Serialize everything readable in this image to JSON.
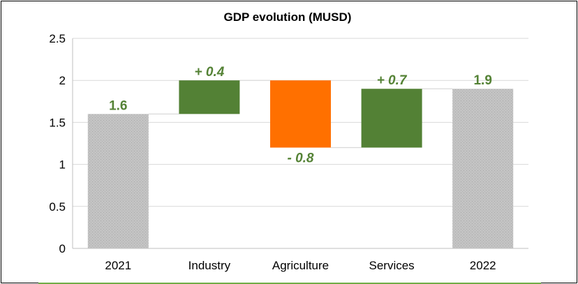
{
  "chart_data": {
    "type": "bar",
    "subtype": "waterfall",
    "title": "GDP evolution (MUSD)",
    "xlabel": "",
    "ylabel": "",
    "ylim": [
      0,
      2.5
    ],
    "yticks": [
      "0",
      "0.5",
      "1",
      "1.5",
      "2",
      "2.5"
    ],
    "grid": true,
    "categories": [
      "2021",
      "Industry",
      "Agriculture",
      "Services",
      "2022"
    ],
    "bars": [
      {
        "category": "2021",
        "kind": "total",
        "start": 0,
        "end": 1.6,
        "label": "1.6"
      },
      {
        "category": "Industry",
        "kind": "increase",
        "start": 1.6,
        "end": 2.0,
        "label": "+ 0.4"
      },
      {
        "category": "Agriculture",
        "kind": "decrease",
        "start": 2.0,
        "end": 1.2,
        "label": "- 0.8"
      },
      {
        "category": "Services",
        "kind": "increase",
        "start": 1.2,
        "end": 1.9,
        "label": "+ 0.7"
      },
      {
        "category": "2022",
        "kind": "total",
        "start": 0,
        "end": 1.9,
        "label": "1.9"
      }
    ],
    "colors": {
      "total": "#c0c0c0",
      "increase": "#538135",
      "decrease": "#ff7000",
      "label": "#548235",
      "grid": "#d9d9d9",
      "connector": "#d9d9d9",
      "accent": "#70ad47"
    }
  }
}
